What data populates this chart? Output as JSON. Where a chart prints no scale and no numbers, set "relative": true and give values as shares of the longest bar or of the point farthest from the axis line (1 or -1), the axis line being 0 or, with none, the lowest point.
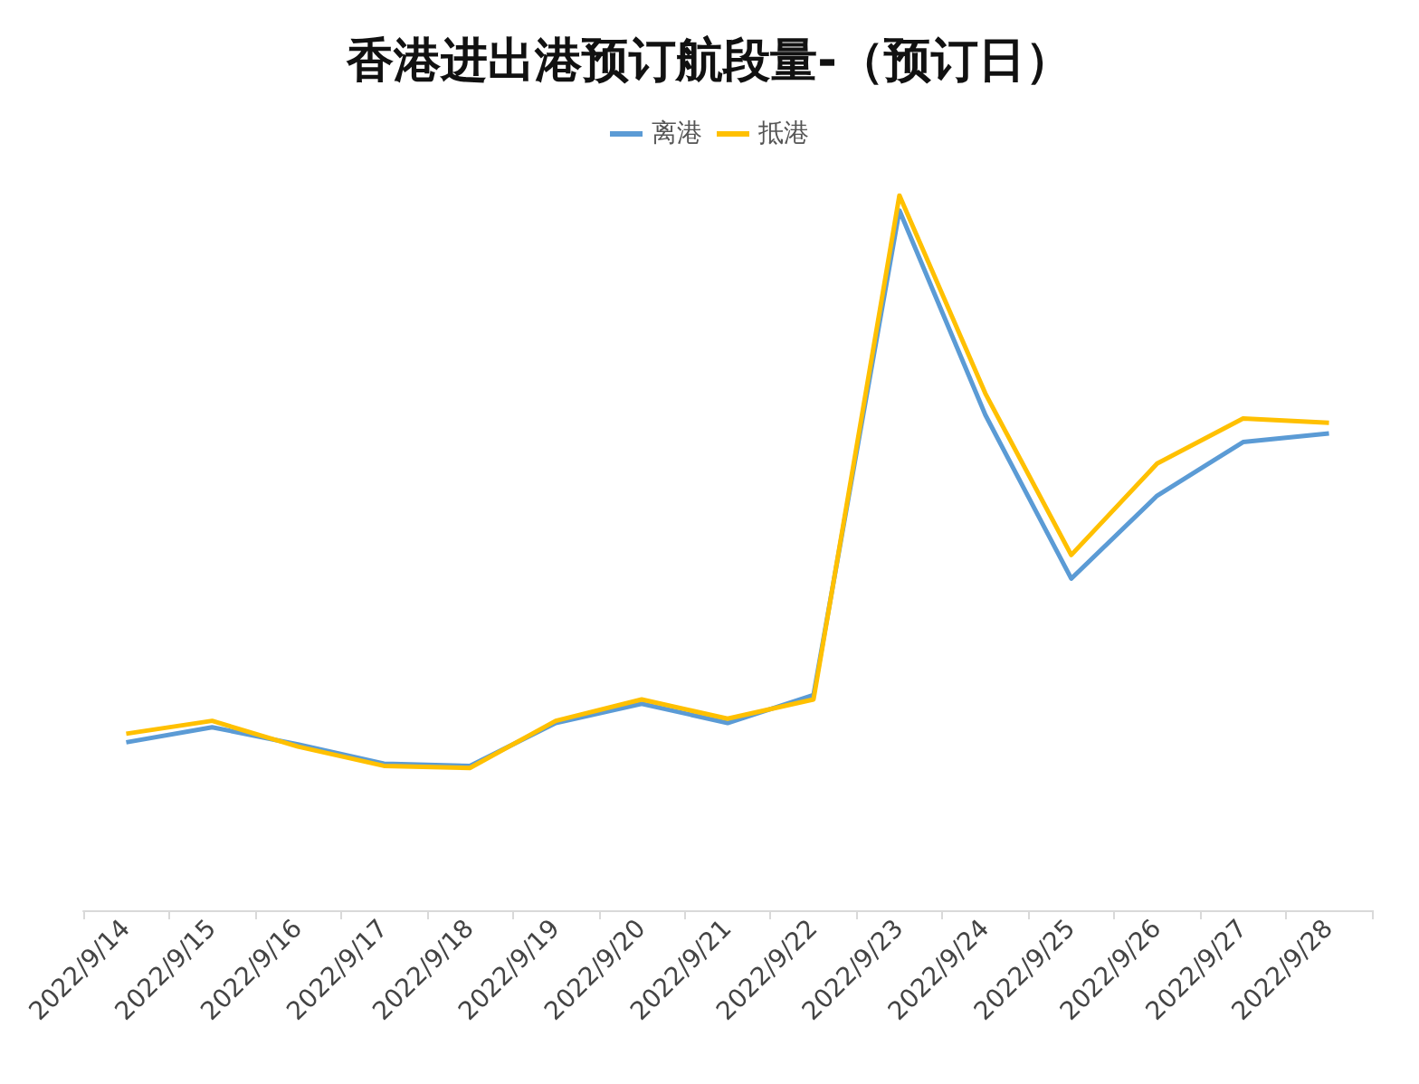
{
  "chart_data": {
    "type": "line",
    "title": "香港进出港预订航段量-（预订日）",
    "relative": true,
    "legend": "top",
    "categories": [
      "2022/9/14",
      "2022/9/15",
      "2022/9/16",
      "2022/9/17",
      "2022/9/18",
      "2022/9/19",
      "2022/9/20",
      "2022/9/21",
      "2022/9/22",
      "2022/9/23",
      "2022/9/24",
      "2022/9/25",
      "2022/9/26",
      "2022/9/27",
      "2022/9/28"
    ],
    "series": [
      {
        "name": "离港",
        "color": "#5b9bd5",
        "values": [
          0.235,
          0.256,
          0.232,
          0.205,
          0.202,
          0.262,
          0.289,
          0.262,
          0.301,
          0.979,
          0.693,
          0.464,
          0.58,
          0.655,
          0.667
        ]
      },
      {
        "name": "抵港",
        "color": "#ffc000",
        "values": [
          0.247,
          0.265,
          0.229,
          0.202,
          0.199,
          0.265,
          0.295,
          0.268,
          0.295,
          1,
          0.723,
          0.497,
          0.625,
          0.688,
          0.682
        ]
      }
    ]
  }
}
